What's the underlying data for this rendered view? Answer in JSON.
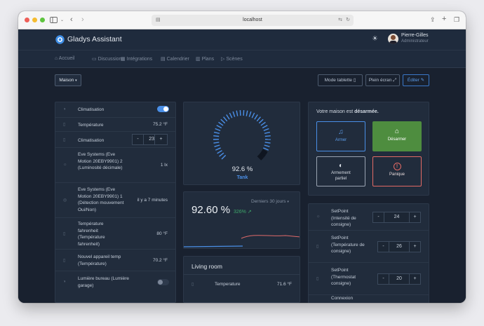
{
  "browser": {
    "url": "localhost"
  },
  "header": {
    "app_name": "Gladys Assistant",
    "user_name": "Pierre-Gilles",
    "user_role": "Administrateur"
  },
  "nav": [
    {
      "label": "Accueil"
    },
    {
      "label": "Discussion"
    },
    {
      "label": "Intégrations"
    },
    {
      "label": "Calendrier"
    },
    {
      "label": "Plans"
    },
    {
      "label": "Scènes"
    }
  ],
  "toolbar": {
    "house_select": "Maison",
    "tablet_mode": "Mode tablette",
    "fullscreen": "Plein écran",
    "edit": "Éditer"
  },
  "devices": [
    {
      "label": "Climatisation",
      "type": "toggle",
      "on": true
    },
    {
      "label": "Température",
      "value": "75.2 °F"
    },
    {
      "label": "Climatisation",
      "type": "stepper",
      "value": "23"
    },
    {
      "label": "Eve Systems (Eve Motion 20EBY9901) 2 (Luminosité décimale)",
      "value": "1 lx"
    },
    {
      "label": "Eve Systems (Eve Motion 20EBY9901) 1 (Détection mouvement Oui/Non)",
      "value": "il y a 7 minutes"
    },
    {
      "label": "Température fahrenheit (Température fahrenheit)",
      "value": "80 °F"
    },
    {
      "label": "Nouvel appareil temp (Température)",
      "value": "70.2 °F"
    },
    {
      "label": "Lumière bureau (Lumière garage)",
      "type": "toggle",
      "on": false
    }
  ],
  "gauge": {
    "value": "92.6 %",
    "level": 0.926,
    "name": "Tank",
    "color": "#4a8fe7"
  },
  "trend": {
    "value": "92.60 %",
    "change": "326%",
    "period": "Derniers 30 jours"
  },
  "living_room": {
    "title": "Living room",
    "sensor_label": "Temperature",
    "sensor_value": "71.6 °F"
  },
  "alarm": {
    "status_prefix": "Votre maison est",
    "status_value": "désarmée.",
    "arm": "Armer",
    "disarm": "Désarmer",
    "partial": "Armement partiel",
    "panic": "Panique"
  },
  "setpoints": [
    {
      "label": "SetPoint (Intensité de consigne)",
      "value": "24"
    },
    {
      "label": "SetPoint (Température de consigne)",
      "value": "26"
    },
    {
      "label": "SetPoint (Thermostat consigne)",
      "value": "20"
    },
    {
      "label": "Connexion"
    }
  ],
  "colors": {
    "accent": "#4a8fe7",
    "success": "#4e8d3f",
    "danger": "#e26a65",
    "trend_up": "#3ea86b"
  }
}
